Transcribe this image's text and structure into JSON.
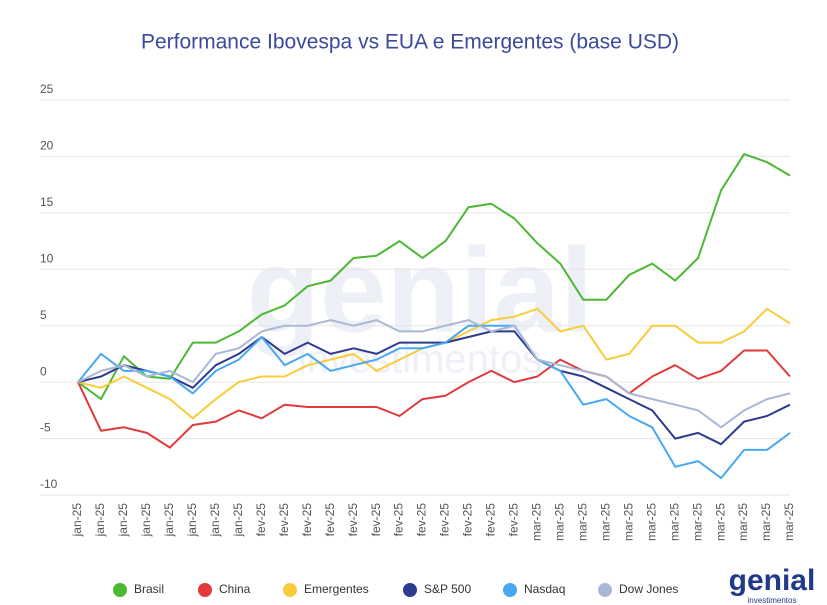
{
  "chart_data": {
    "type": "line",
    "title": "Performance Ibovespa vs EUA e Emergentes (base USD)",
    "categories": [
      "jan-25",
      "jan-25",
      "jan-25",
      "jan-25",
      "jan-25",
      "jan-25",
      "jan-25",
      "jan-25",
      "fev-25",
      "fev-25",
      "fev-25",
      "fev-25",
      "fev-25",
      "fev-25",
      "fev-25",
      "fev-25",
      "fev-25",
      "fev-25",
      "fev-25",
      "fev-25",
      "mar-25",
      "mar-25",
      "mar-25",
      "mar-25",
      "mar-25",
      "mar-25",
      "mar-25",
      "mar-25",
      "mar-25",
      "mar-25",
      "mar-25",
      "mar-25"
    ],
    "series": [
      {
        "name": "Brasil",
        "color": "#4cb833",
        "values": [
          0,
          -1.5,
          2.3,
          0.5,
          0.3,
          3.5,
          3.5,
          4.5,
          6,
          6.8,
          8.5,
          9,
          11,
          11.2,
          12.5,
          11,
          12.5,
          15.5,
          15.8,
          14.5,
          12.3,
          10.5,
          7.3,
          7.3,
          9.5,
          10.5,
          9,
          11,
          17,
          20.2,
          19.5,
          18.3
        ]
      },
      {
        "name": "China",
        "color": "#e03a3a",
        "values": [
          0,
          -4.3,
          -4,
          -4.5,
          -5.8,
          -3.8,
          -3.5,
          -2.5,
          -3.2,
          -2,
          -2.2,
          -2.2,
          -2.2,
          -2.2,
          -3,
          -1.5,
          -1.2,
          0,
          1,
          0,
          0.5,
          2,
          1,
          0.5,
          -1,
          0.5,
          1.5,
          0.3,
          1,
          2.8,
          2.8,
          0.5
        ]
      },
      {
        "name": "Emergentes",
        "color": "#f8cc3a",
        "values": [
          0,
          -0.5,
          0.5,
          -0.5,
          -1.5,
          -3.2,
          -1.5,
          0,
          0.5,
          0.5,
          1.5,
          2,
          2.5,
          1,
          2,
          3,
          3.5,
          4.5,
          5.5,
          5.8,
          6.5,
          4.5,
          5,
          2,
          2.5,
          5,
          5,
          3.5,
          3.5,
          4.5,
          6.5,
          5.2
        ]
      },
      {
        "name": "S&P 500",
        "color": "#2e3a8f",
        "values": [
          0,
          0.5,
          1.5,
          1,
          0.5,
          -0.5,
          1.5,
          2.5,
          4,
          2.5,
          3.5,
          2.5,
          3,
          2.5,
          3.5,
          3.5,
          3.5,
          4,
          4.5,
          4.5,
          2,
          1,
          0.5,
          -0.5,
          -1.5,
          -2.5,
          -5,
          -4.5,
          -5.5,
          -3.5,
          -3,
          -2
        ]
      },
      {
        "name": "Nasdaq",
        "color": "#4aa8f0",
        "values": [
          0,
          2.5,
          1,
          1,
          0.5,
          -1,
          1,
          2,
          4,
          1.5,
          2.5,
          1,
          1.5,
          2,
          3,
          3,
          3.5,
          5,
          5,
          5,
          2,
          1,
          -2,
          -1.5,
          -3,
          -4,
          -7.5,
          -7,
          -8.5,
          -6,
          -6,
          -4.5
        ]
      },
      {
        "name": "Dow Jones",
        "color": "#a9b8d4",
        "values": [
          0,
          1,
          1.5,
          0.5,
          1,
          0,
          2.5,
          3,
          4.5,
          5,
          5,
          5.5,
          5,
          5.5,
          4.5,
          4.5,
          5,
          5.5,
          4.5,
          5,
          2,
          1.5,
          1,
          0.5,
          -1,
          -1.5,
          -2,
          -2.5,
          -4,
          -2.5,
          -1.5,
          -1
        ]
      }
    ],
    "ylim": [
      -10,
      25
    ],
    "yticks": [
      -10,
      -5,
      0,
      5,
      10,
      15,
      20,
      25
    ],
    "grid": true,
    "legend": "bottom",
    "logo": "genial",
    "logo_sub": "investimentos"
  }
}
